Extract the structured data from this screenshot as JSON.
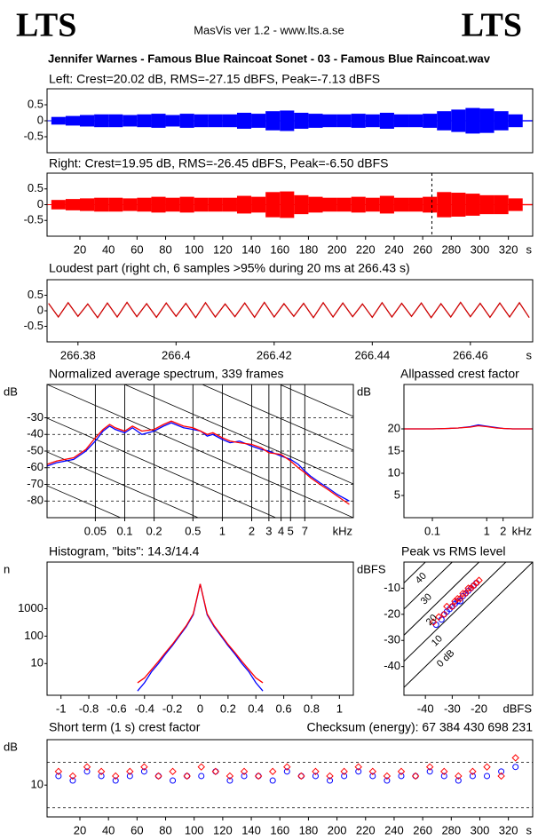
{
  "header": {
    "logo_left": "LTS",
    "app": "MasVis ver 1.2 - www.lts.a.se",
    "logo_right": "LTS",
    "file": "Jennifer Warnes - Famous Blue Raincoat Sonet - 03 - Famous Blue Raincoat.wav"
  },
  "chart_data": [
    {
      "type": "waveform",
      "title": "Left: Crest=20.02 dB, RMS=-27.15 dBFS, Peak=-7.13 dBFS",
      "x": [
        0,
        10,
        20,
        30,
        40,
        50,
        60,
        70,
        80,
        90,
        100,
        110,
        120,
        130,
        140,
        150,
        160,
        170,
        180,
        190,
        200,
        210,
        220,
        230,
        240,
        250,
        260,
        270,
        280,
        290,
        300,
        310,
        320,
        330
      ],
      "series": [
        {
          "color": "#0000ff",
          "values": [
            0.12,
            0.15,
            0.18,
            0.2,
            0.2,
            0.18,
            0.2,
            0.22,
            0.18,
            0.22,
            0.2,
            0.2,
            0.2,
            0.25,
            0.22,
            0.3,
            0.32,
            0.25,
            0.22,
            0.2,
            0.2,
            0.22,
            0.2,
            0.25,
            0.2,
            0.2,
            0.22,
            0.3,
            0.35,
            0.4,
            0.38,
            0.3,
            0.2,
            0.02
          ]
        }
      ],
      "xlim": [
        -3,
        337
      ],
      "ylim": [
        -1,
        1
      ],
      "yticks": [
        0.5,
        0,
        -0.5
      ]
    },
    {
      "type": "waveform",
      "title": "Right: Crest=19.95 dB, RMS=-26.45 dBFS, Peak=-6.50 dBFS",
      "x": [
        0,
        10,
        20,
        30,
        40,
        50,
        60,
        70,
        80,
        90,
        100,
        110,
        120,
        130,
        140,
        150,
        160,
        170,
        180,
        190,
        200,
        210,
        220,
        230,
        240,
        250,
        260,
        270,
        280,
        290,
        300,
        310,
        320,
        330
      ],
      "series": [
        {
          "color": "#ff0000",
          "values": [
            0.15,
            0.18,
            0.2,
            0.22,
            0.22,
            0.2,
            0.22,
            0.25,
            0.22,
            0.25,
            0.22,
            0.22,
            0.22,
            0.28,
            0.25,
            0.4,
            0.42,
            0.3,
            0.25,
            0.22,
            0.22,
            0.25,
            0.22,
            0.28,
            0.22,
            0.22,
            0.25,
            0.4,
            0.38,
            0.35,
            0.3,
            0.3,
            0.2,
            0.02
          ]
        }
      ],
      "marker": 266.43,
      "xlim": [
        -3,
        337
      ],
      "ylim": [
        -1,
        1
      ],
      "yticks": [
        0.5,
        0,
        -0.5
      ],
      "xticks": [
        20,
        40,
        60,
        80,
        100,
        120,
        140,
        160,
        180,
        200,
        220,
        240,
        260,
        280,
        300,
        320
      ],
      "x_unit": "s"
    },
    {
      "type": "line",
      "title": "Loudest part (right ch, 6 samples >95% during 20 ms at 266.43 s)",
      "x": [
        266.374,
        266.376,
        266.378,
        266.38,
        266.382,
        266.384,
        266.386,
        266.388,
        266.39,
        266.392,
        266.394,
        266.396,
        266.398,
        266.4,
        266.402,
        266.404,
        266.406,
        266.408,
        266.41,
        266.412,
        266.414,
        266.416,
        266.418,
        266.42,
        266.422,
        266.424,
        266.426,
        266.428,
        266.43,
        266.432,
        266.434,
        266.436,
        266.438,
        266.44,
        266.442,
        266.444,
        266.446,
        266.448,
        266.45,
        266.452,
        266.454,
        266.456,
        266.458,
        266.46,
        266.462,
        266.464,
        266.466,
        266.468,
        266.47,
        266.472
      ],
      "series": [
        {
          "color": "#cc0000",
          "values": [
            0.24,
            -0.2,
            0.26,
            -0.18,
            0.22,
            -0.22,
            0.25,
            -0.2,
            0.27,
            -0.19,
            0.23,
            -0.21,
            0.25,
            -0.18,
            0.24,
            -0.22,
            0.26,
            -0.2,
            0.22,
            -0.19,
            0.25,
            -0.21,
            0.27,
            -0.2,
            0.23,
            -0.18,
            0.24,
            -0.22,
            0.26,
            -0.2,
            0.25,
            -0.19,
            0.22,
            -0.21,
            0.26,
            -0.2,
            0.24,
            -0.18,
            0.25,
            -0.22,
            0.23,
            -0.2,
            0.27,
            -0.19,
            0.24,
            -0.21,
            0.25,
            -0.2,
            0.26,
            -0.22
          ]
        }
      ],
      "xlim": [
        266.3737,
        266.4727
      ],
      "ylim": [
        -1,
        1
      ],
      "yticks": [
        0.5,
        0,
        -0.5
      ],
      "xticks": [
        266.38,
        266.4,
        266.42,
        266.44,
        266.46
      ],
      "x_unit": "s"
    },
    {
      "type": "line",
      "title": "Normalized average spectrum, 339 frames",
      "xscale": "log",
      "grid": true,
      "x": [
        0.016,
        0.02,
        0.03,
        0.04,
        0.05,
        0.06,
        0.07,
        0.08,
        0.1,
        0.12,
        0.15,
        0.2,
        0.25,
        0.3,
        0.4,
        0.5,
        0.6,
        0.7,
        0.8,
        1,
        1.2,
        1.5,
        2,
        2.5,
        3,
        4,
        5,
        6,
        7,
        8,
        10,
        12,
        15,
        20
      ],
      "series": [
        {
          "color": "#0000ff",
          "values": [
            -59,
            -57,
            -55,
            -50,
            -44,
            -38,
            -35,
            -37,
            -39,
            -36,
            -40,
            -38,
            -35,
            -33,
            -36,
            -37,
            -38,
            -41,
            -40,
            -43,
            -45,
            -44,
            -47,
            -49,
            -50,
            -53,
            -55,
            -58,
            -62,
            -65,
            -69,
            -72,
            -76,
            -80
          ]
        },
        {
          "color": "#ff0000",
          "values": [
            -58,
            -56,
            -54,
            -49,
            -42,
            -37,
            -34,
            -36,
            -38,
            -35,
            -38,
            -37,
            -34,
            -32,
            -35,
            -36,
            -38,
            -40,
            -39,
            -42,
            -44,
            -45,
            -46,
            -48,
            -51,
            -52,
            -56,
            -60,
            -63,
            -66,
            -70,
            -73,
            -77,
            -82
          ]
        }
      ],
      "xlim": [
        0.016,
        22
      ],
      "ylim": [
        -90,
        -10
      ],
      "yticks": [
        -30,
        -40,
        -50,
        -60,
        -70,
        -80
      ],
      "y_unit": "dB",
      "xticks": [
        0.05,
        0.1,
        0.2,
        0.5,
        1,
        2,
        3,
        4,
        5,
        7
      ],
      "x_unit": "kHz"
    },
    {
      "type": "line",
      "title": "Allpassed crest factor",
      "xscale": "log",
      "x": [
        0.03,
        0.05,
        0.1,
        0.2,
        0.3,
        0.5,
        0.7,
        1,
        1.5,
        2,
        3,
        5,
        7
      ],
      "series": [
        {
          "color": "#0000ff",
          "values": [
            20,
            20,
            20,
            20.1,
            20.2,
            20.5,
            20.9,
            20.6,
            20.3,
            20.1,
            20,
            20,
            20
          ]
        },
        {
          "color": "#ff0000",
          "values": [
            20,
            20,
            20,
            20.1,
            20.2,
            20.4,
            20.7,
            20.5,
            20.2,
            20.1,
            20,
            20,
            20
          ]
        }
      ],
      "xlim": [
        0.03,
        7
      ],
      "ylim": [
        0,
        30
      ],
      "yticks": [
        20,
        15,
        10,
        5
      ],
      "y_unit": "dB",
      "xticks": [
        0.1,
        1,
        2
      ],
      "x_unit": "kHz"
    },
    {
      "type": "line",
      "title": "Histogram, \"bits\": 14.3/14.4",
      "yscale": "log",
      "x": [
        -0.45,
        -0.4,
        -0.35,
        -0.3,
        -0.25,
        -0.2,
        -0.15,
        -0.1,
        -0.05,
        0,
        0.05,
        0.1,
        0.15,
        0.2,
        0.25,
        0.3,
        0.35,
        0.4,
        0.45
      ],
      "series": [
        {
          "color": "#0000ff",
          "values": [
            1,
            2,
            5,
            10,
            22,
            45,
            100,
            220,
            600,
            8000,
            600,
            220,
            100,
            45,
            22,
            10,
            5,
            2,
            1
          ]
        },
        {
          "color": "#ff0000",
          "values": [
            2,
            3,
            6,
            12,
            25,
            50,
            110,
            240,
            650,
            8000,
            650,
            240,
            110,
            50,
            25,
            12,
            6,
            3,
            2
          ]
        }
      ],
      "xlim": [
        -1.1,
        1.1
      ],
      "ylim": [
        0.7,
        50000
      ],
      "yticks": [
        1000,
        100,
        10
      ],
      "y_unit": "n",
      "xticks": [
        -1,
        -0.8,
        -0.6,
        -0.4,
        -0.2,
        0,
        0.2,
        0.4,
        0.6,
        0.8,
        1
      ]
    },
    {
      "type": "scatter",
      "title": "Peak vs RMS level",
      "series": [
        {
          "color": "#0000ff",
          "marker": "circle",
          "x": [
            -36,
            -34,
            -33,
            -32,
            -31,
            -30,
            -29,
            -28,
            -27,
            -26,
            -25,
            -24,
            -23,
            -22,
            -21
          ],
          "values": [
            -24,
            -22,
            -20,
            -19,
            -18,
            -17,
            -16,
            -15,
            -15,
            -13,
            -12,
            -11,
            -10,
            -9,
            -8
          ]
        },
        {
          "color": "#ff0000",
          "marker": "diamond",
          "x": [
            -37,
            -35,
            -33,
            -32,
            -30,
            -29,
            -28,
            -27,
            -26,
            -25,
            -24,
            -23,
            -22,
            -21,
            -20
          ],
          "values": [
            -23,
            -21,
            -20,
            -17,
            -17,
            -15,
            -14,
            -14,
            -12,
            -12,
            -10,
            -10,
            -9,
            -8,
            -7
          ]
        }
      ],
      "crest_lines": [
        {
          "value": 40,
          "label": "40"
        },
        {
          "value": 30,
          "label": "30"
        },
        {
          "value": 20,
          "label": "20"
        },
        {
          "value": 10,
          "label": "10"
        },
        {
          "value": 0,
          "label": "0 dB"
        }
      ],
      "xlim": [
        -48,
        0
      ],
      "ylim": [
        -51,
        0
      ],
      "yticks": [
        -10,
        -20,
        -30,
        -40
      ],
      "y_unit": "dBFS",
      "xticks": [
        -40,
        -30,
        -20
      ],
      "x_unit": "dBFS"
    },
    {
      "type": "scatter",
      "title": "Short term (1 s) crest factor",
      "annotation": "Checksum (energy):  67 384 430 698 231",
      "series": [
        {
          "color": "#0000ff",
          "marker": "circle",
          "x": [
            5,
            15,
            25,
            35,
            45,
            55,
            65,
            75,
            85,
            95,
            105,
            115,
            125,
            135,
            145,
            155,
            165,
            175,
            185,
            195,
            205,
            215,
            225,
            235,
            245,
            255,
            265,
            275,
            285,
            295,
            305,
            315,
            325
          ],
          "values": [
            12,
            11,
            13,
            12,
            11,
            12,
            13,
            12,
            11,
            12,
            12,
            13,
            11,
            12,
            12,
            11,
            13,
            12,
            12,
            11,
            12,
            13,
            12,
            11,
            12,
            12,
            13,
            12,
            11,
            12,
            12,
            13,
            14
          ]
        },
        {
          "color": "#ff0000",
          "marker": "diamond",
          "x": [
            5,
            15,
            25,
            35,
            45,
            55,
            65,
            75,
            85,
            95,
            105,
            115,
            125,
            135,
            145,
            155,
            165,
            175,
            185,
            195,
            205,
            215,
            225,
            235,
            245,
            255,
            265,
            275,
            285,
            295,
            305,
            315,
            325
          ],
          "values": [
            13,
            12,
            14,
            13,
            12,
            13,
            14,
            12,
            13,
            12,
            14,
            13,
            12,
            13,
            12,
            13,
            14,
            12,
            13,
            12,
            13,
            14,
            13,
            12,
            13,
            12,
            14,
            13,
            12,
            13,
            14,
            12,
            16
          ]
        }
      ],
      "reference_lines": [
        5,
        15
      ],
      "xlim": [
        -3,
        337
      ],
      "ylim": [
        3,
        20
      ],
      "yticks": [
        10
      ],
      "y_unit": "dB",
      "xticks": [
        20,
        40,
        60,
        80,
        100,
        120,
        140,
        160,
        180,
        200,
        220,
        240,
        260,
        280,
        300,
        320
      ],
      "x_unit": "s"
    }
  ]
}
